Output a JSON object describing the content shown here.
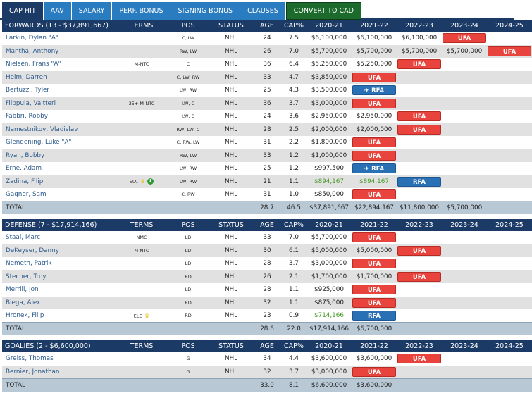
{
  "tabs": [
    {
      "label": "CAP HIT",
      "active": true
    },
    {
      "label": "AAV"
    },
    {
      "label": "SALARY"
    },
    {
      "label": "PERF. BONUS"
    },
    {
      "label": "SIGNING BONUS"
    },
    {
      "label": "CLAUSES"
    },
    {
      "label": "CONVERT TO CAD",
      "cad": true
    }
  ],
  "colors": {
    "header": "#1b3a66",
    "ufa": "#e8433c",
    "rfa": "#2a70b5",
    "elc_value": "#4a9a2a"
  },
  "columns": [
    "TERMS",
    "POS",
    "STATUS",
    "AGE",
    "CAP%",
    "2020-21",
    "2021-22",
    "2022-23",
    "2023-24",
    "2024-25"
  ],
  "sections": [
    {
      "title": "FORWARDS (13 - $37,891,667)",
      "rows": [
        {
          "name": "Larkin, Dylan \"A\"",
          "terms": "",
          "pos": "C, LW",
          "status": "NHL",
          "age": "24",
          "cap": "7.5",
          "seasons": [
            "$6,100,000",
            "$6,100,000",
            "$6,100,000",
            {
              "badge": "UFA"
            },
            ""
          ]
        },
        {
          "name": "Mantha, Anthony",
          "terms": "",
          "pos": "RW, LW",
          "status": "NHL",
          "age": "26",
          "cap": "7.0",
          "seasons": [
            "$5,700,000",
            "$5,700,000",
            "$5,700,000",
            "$5,700,000",
            {
              "badge": "UFA"
            }
          ]
        },
        {
          "name": "Nielsen, Frans \"A\"",
          "terms": "M-NTC",
          "pos": "C",
          "status": "NHL",
          "age": "36",
          "cap": "6.4",
          "seasons": [
            "$5,250,000",
            "$5,250,000",
            {
              "badge": "UFA"
            },
            "",
            ""
          ]
        },
        {
          "name": "Helm, Darren",
          "terms": "",
          "pos": "C, LW, RW",
          "status": "NHL",
          "age": "33",
          "cap": "4.7",
          "seasons": [
            "$3,850,000",
            {
              "badge": "UFA"
            },
            "",
            "",
            ""
          ]
        },
        {
          "name": "Bertuzzi, Tyler",
          "terms": "",
          "pos": "LW, RW",
          "status": "NHL",
          "age": "25",
          "cap": "4.3",
          "seasons": [
            "$3,500,000",
            {
              "badge": "RFA",
              "icon": "arbitration-icon"
            },
            "",
            "",
            ""
          ]
        },
        {
          "name": "Filppula, Valtteri",
          "terms": "35+ M-NTC",
          "pos": "LW, C",
          "status": "NHL",
          "age": "36",
          "cap": "3.7",
          "seasons": [
            "$3,000,000",
            {
              "badge": "UFA"
            },
            "",
            "",
            ""
          ]
        },
        {
          "name": "Fabbri, Robby",
          "terms": "",
          "pos": "LW, C",
          "status": "NHL",
          "age": "24",
          "cap": "3.6",
          "seasons": [
            "$2,950,000",
            "$2,950,000",
            {
              "badge": "UFA"
            },
            "",
            ""
          ]
        },
        {
          "name": "Namestnikov, Vladislav",
          "terms": "",
          "pos": "RW, LW, C",
          "status": "NHL",
          "age": "28",
          "cap": "2.5",
          "seasons": [
            "$2,000,000",
            "$2,000,000",
            {
              "badge": "UFA"
            },
            "",
            ""
          ]
        },
        {
          "name": "Glendening, Luke \"A\"",
          "terms": "",
          "pos": "C, RW, LW",
          "status": "NHL",
          "age": "31",
          "cap": "2.2",
          "seasons": [
            "$1,800,000",
            {
              "badge": "UFA"
            },
            "",
            "",
            ""
          ]
        },
        {
          "name": "Ryan, Bobby",
          "terms": "",
          "pos": "RW, LW",
          "status": "NHL",
          "age": "33",
          "cap": "1.2",
          "seasons": [
            "$1,000,000",
            {
              "badge": "UFA"
            },
            "",
            "",
            ""
          ]
        },
        {
          "name": "Erne, Adam",
          "terms": "",
          "pos": "LW, RW",
          "status": "NHL",
          "age": "25",
          "cap": "1.2",
          "seasons": [
            "$997,500",
            {
              "badge": "RFA",
              "icon": "arbitration-icon"
            },
            "",
            "",
            ""
          ]
        },
        {
          "name": "Zadina, Filip",
          "terms": "ELC",
          "terms_icons": [
            "trophy-icon",
            "down-arrow-icon"
          ],
          "pos": "LW, RW",
          "status": "NHL",
          "age": "21",
          "cap": "1.1",
          "green": true,
          "seasons": [
            "$894,167",
            "$894,167",
            {
              "badge": "RFA"
            },
            "",
            ""
          ]
        },
        {
          "name": "Gagner, Sam",
          "terms": "",
          "pos": "C, RW",
          "status": "NHL",
          "age": "31",
          "cap": "1.0",
          "seasons": [
            "$850,000",
            {
              "badge": "UFA"
            },
            "",
            "",
            ""
          ]
        }
      ],
      "total": {
        "label": "TOTAL",
        "age": "28.7",
        "cap": "46.5",
        "seasons": [
          "$37,891,667",
          "$22,894,167",
          "$11,800,000",
          "$5,700,000",
          ""
        ]
      }
    },
    {
      "title": "DEFENSE (7 - $17,914,166)",
      "rows": [
        {
          "name": "Staal, Marc",
          "terms": "NMC",
          "pos": "LD",
          "status": "NHL",
          "age": "33",
          "cap": "7.0",
          "seasons": [
            "$5,700,000",
            {
              "badge": "UFA"
            },
            "",
            "",
            ""
          ]
        },
        {
          "name": "DeKeyser, Danny",
          "terms": "M-NTC",
          "pos": "LD",
          "status": "NHL",
          "age": "30",
          "cap": "6.1",
          "seasons": [
            "$5,000,000",
            "$5,000,000",
            {
              "badge": "UFA"
            },
            "",
            ""
          ]
        },
        {
          "name": "Nemeth, Patrik",
          "terms": "",
          "pos": "LD",
          "status": "NHL",
          "age": "28",
          "cap": "3.7",
          "seasons": [
            "$3,000,000",
            {
              "badge": "UFA"
            },
            "",
            "",
            ""
          ]
        },
        {
          "name": "Stecher, Troy",
          "terms": "",
          "pos": "RD",
          "status": "NHL",
          "age": "26",
          "cap": "2.1",
          "seasons": [
            "$1,700,000",
            "$1,700,000",
            {
              "badge": "UFA"
            },
            "",
            ""
          ]
        },
        {
          "name": "Merrill, Jon",
          "terms": "",
          "pos": "LD",
          "status": "NHL",
          "age": "28",
          "cap": "1.1",
          "seasons": [
            "$925,000",
            {
              "badge": "UFA"
            },
            "",
            "",
            ""
          ]
        },
        {
          "name": "Biega, Alex",
          "terms": "",
          "pos": "RD",
          "status": "NHL",
          "age": "32",
          "cap": "1.1",
          "seasons": [
            "$875,000",
            {
              "badge": "UFA"
            },
            "",
            "",
            ""
          ]
        },
        {
          "name": "Hronek, Filip",
          "terms": "ELC",
          "terms_icons": [
            "trophy-icon"
          ],
          "pos": "RD",
          "status": "NHL",
          "age": "23",
          "cap": "0.9",
          "green": true,
          "seasons": [
            "$714,166",
            {
              "badge": "RFA"
            },
            "",
            "",
            ""
          ]
        }
      ],
      "total": {
        "label": "TOTAL",
        "age": "28.6",
        "cap": "22.0",
        "seasons": [
          "$17,914,166",
          "$6,700,000",
          "",
          "",
          ""
        ]
      }
    },
    {
      "title": "GOALIES (2 - $6,600,000)",
      "rows": [
        {
          "name": "Greiss, Thomas",
          "terms": "",
          "pos": "G",
          "status": "NHL",
          "age": "34",
          "cap": "4.4",
          "seasons": [
            "$3,600,000",
            "$3,600,000",
            {
              "badge": "UFA"
            },
            "",
            ""
          ]
        },
        {
          "name": "Bernier, Jonathan",
          "terms": "",
          "pos": "G",
          "status": "NHL",
          "age": "32",
          "cap": "3.7",
          "seasons": [
            "$3,000,000",
            {
              "badge": "UFA"
            },
            "",
            "",
            ""
          ]
        }
      ],
      "total": {
        "label": "TOTAL",
        "age": "33.0",
        "cap": "8.1",
        "seasons": [
          "$6,600,000",
          "$3,600,000",
          "",
          "",
          ""
        ]
      }
    }
  ]
}
